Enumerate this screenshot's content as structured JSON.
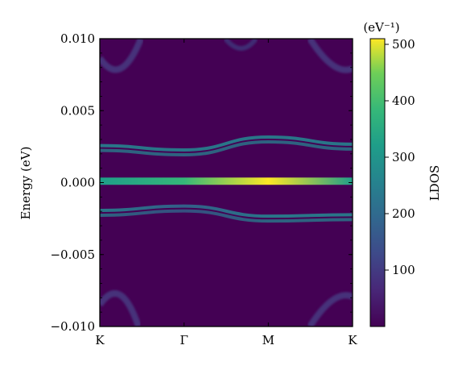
{
  "chart_data": {
    "type": "heatmap",
    "title": "",
    "xlabel": "",
    "ylabel": "Energy (eV)",
    "x_ticks": [
      "K",
      "Γ",
      "M",
      "K"
    ],
    "y_ticks": [
      "0.010",
      "0.005",
      "0.000",
      "−0.005",
      "−0.010"
    ],
    "y_tick_values": [
      0.01,
      0.005,
      0.0,
      -0.005,
      -0.01
    ],
    "ylim": [
      -0.01,
      0.01
    ],
    "colormap": "viridis",
    "colorbar": {
      "label": "LDOS",
      "unit": "(eV⁻¹)",
      "ticks": [
        "100",
        "200",
        "300",
        "400",
        "500"
      ],
      "tick_values": [
        100,
        200,
        300,
        400,
        500
      ],
      "range": [
        0,
        510
      ]
    },
    "bands": [
      {
        "name": "flat band",
        "energy_eV": [
          0.0001,
          0.0001,
          0.0001,
          0.0001
        ],
        "ldos": [
          280,
          320,
          500,
          300
        ]
      },
      {
        "name": "upper band",
        "energy_eV": [
          0.0024,
          0.0021,
          0.003,
          0.0025
        ],
        "ldos": [
          210,
          200,
          220,
          210
        ]
      },
      {
        "name": "lower band",
        "energy_eV": [
          -0.0021,
          -0.0018,
          -0.0025,
          -0.0024
        ],
        "ldos": [
          200,
          190,
          200,
          200
        ]
      }
    ],
    "background_ldos": 20
  }
}
